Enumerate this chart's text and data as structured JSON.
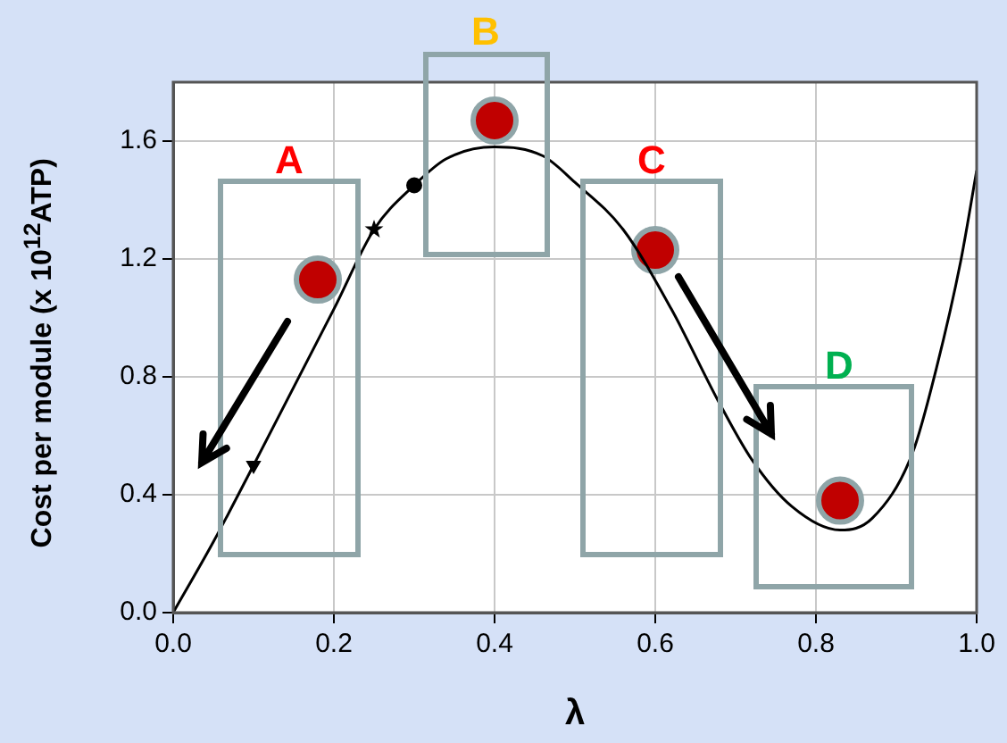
{
  "chart_data": {
    "type": "line",
    "xlabel": "λ",
    "ylabel": "Cost per module (x 10$^{12}$ATP)",
    "xlim": [
      0,
      1
    ],
    "xticks": [
      {
        "value": 0,
        "label": "0.0"
      },
      0.2,
      0.4,
      0.6,
      0.8,
      {
        "value": 1,
        "label": "1.0"
      }
    ],
    "ylim": [
      0,
      1.8
    ],
    "yticks": [
      {
        "value": 0,
        "label": "0.0"
      },
      0.4,
      0.8,
      1.2,
      1.6
    ],
    "grid": true,
    "marker": "none",
    "line_style": "solid",
    "series": [
      {
        "color": "#000000",
        "x": [
          0,
          0.05,
          0.1,
          0.2,
          0.25,
          0.3,
          0.34,
          0.4,
          0.46,
          0.5,
          0.56,
          0.62,
          0.68,
          0.72,
          0.77,
          0.83,
          0.87,
          0.92,
          0.95,
          0.98,
          1.0
        ],
        "values": [
          0,
          0.24,
          0.5,
          1.03,
          1.3,
          1.45,
          1.54,
          1.58,
          1.55,
          1.46,
          1.3,
          1.03,
          0.71,
          0.52,
          0.36,
          0.28,
          0.32,
          0.54,
          0.83,
          1.19,
          1.5
        ]
      },
      {
        "type": "scatter",
        "marker": "triangle",
        "color": "#000000",
        "x": [
          0.1
        ],
        "values": [
          0.5
        ]
      },
      {
        "type": "scatter",
        "marker": "star",
        "color": "#000000",
        "x": [
          0.25
        ],
        "values": [
          1.3
        ]
      },
      {
        "type": "scatter",
        "marker": "circle",
        "color": "#000000",
        "x": [
          0.3
        ],
        "values": [
          1.45
        ]
      },
      {
        "type": "scatter",
        "marker": "circle",
        "color": "#c00000",
        "x": [
          0.18,
          0.4,
          0.6,
          0.83
        ],
        "values": [
          1.13,
          1.67,
          1.23,
          0.38
        ]
      }
    ],
    "annotations": [
      "A",
      "B",
      "C",
      "D"
    ]
  }
}
